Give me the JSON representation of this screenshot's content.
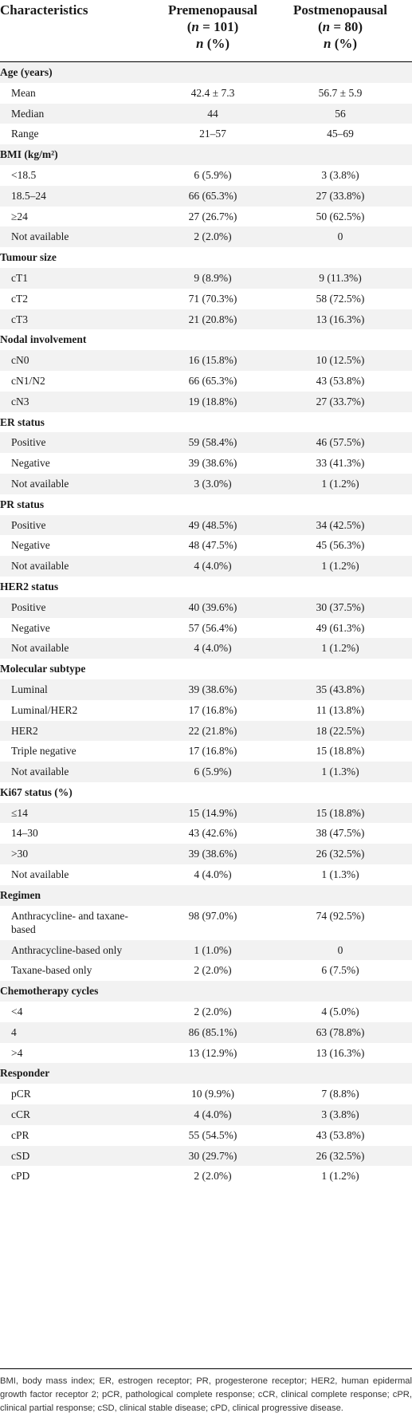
{
  "header": {
    "characteristics": "Characteristics",
    "pre_title": "Premenopausal",
    "pre_n_open": "(",
    "pre_n_var": "n",
    "pre_n_val": " = 101)",
    "pre_sub_n": "n",
    "pre_sub_pct": " (%)",
    "post_title": "Postmenopausal",
    "post_n_open": "(",
    "post_n_var": "n",
    "post_n_val": " = 80)",
    "post_sub_n": "n",
    "post_sub_pct": " (%)"
  },
  "rows": [
    {
      "label": "Age (years)",
      "pre": "",
      "post": "",
      "category": true
    },
    {
      "label": "Mean",
      "pre": "42.4 ± 7.3",
      "post": "56.7 ± 5.9"
    },
    {
      "label": "Median",
      "pre": "44",
      "post": "56"
    },
    {
      "label": "Range",
      "pre": "21–57",
      "post": "45–69"
    },
    {
      "label": "BMI (kg/m²)",
      "pre": "",
      "post": "",
      "category": true
    },
    {
      "label": "<18.5",
      "pre": "6 (5.9%)",
      "post": "3 (3.8%)"
    },
    {
      "label": "18.5–24",
      "pre": "66 (65.3%)",
      "post": "27 (33.8%)"
    },
    {
      "label": "≥24",
      "pre": "27 (26.7%)",
      "post": "50 (62.5%)"
    },
    {
      "label": "Not available",
      "pre": "2 (2.0%)",
      "post": "0"
    },
    {
      "label": "Tumour size",
      "pre": "",
      "post": "",
      "category": true
    },
    {
      "label": "cT1",
      "pre": "9 (8.9%)",
      "post": "9 (11.3%)"
    },
    {
      "label": "cT2",
      "pre": "71 (70.3%)",
      "post": "58 (72.5%)"
    },
    {
      "label": "cT3",
      "pre": "21 (20.8%)",
      "post": "13 (16.3%)"
    },
    {
      "label": "Nodal involvement",
      "pre": "",
      "post": "",
      "category": true
    },
    {
      "label": "cN0",
      "pre": "16 (15.8%)",
      "post": "10 (12.5%)"
    },
    {
      "label": "cN1/N2",
      "pre": "66 (65.3%)",
      "post": "43 (53.8%)"
    },
    {
      "label": "cN3",
      "pre": "19 (18.8%)",
      "post": "27 (33.7%)"
    },
    {
      "label": "ER status",
      "pre": "",
      "post": "",
      "category": true
    },
    {
      "label": "Positive",
      "pre": "59 (58.4%)",
      "post": "46 (57.5%)"
    },
    {
      "label": "Negative",
      "pre": "39 (38.6%)",
      "post": "33 (41.3%)"
    },
    {
      "label": "Not available",
      "pre": "3 (3.0%)",
      "post": "1 (1.2%)"
    },
    {
      "label": "PR status",
      "pre": "",
      "post": "",
      "category": true
    },
    {
      "label": "Positive",
      "pre": "49 (48.5%)",
      "post": "34 (42.5%)"
    },
    {
      "label": "Negative",
      "pre": "48 (47.5%)",
      "post": "45 (56.3%)"
    },
    {
      "label": "Not available",
      "pre": "4 (4.0%)",
      "post": "1 (1.2%)"
    },
    {
      "label": "HER2 status",
      "pre": "",
      "post": "",
      "category": true
    },
    {
      "label": "Positive",
      "pre": "40 (39.6%)",
      "post": "30 (37.5%)"
    },
    {
      "label": "Negative",
      "pre": "57 (56.4%)",
      "post": "49 (61.3%)"
    },
    {
      "label": "Not available",
      "pre": "4 (4.0%)",
      "post": "1 (1.2%)"
    },
    {
      "label": "Molecular subtype",
      "pre": "",
      "post": "",
      "category": true
    },
    {
      "label": "Luminal",
      "pre": "39 (38.6%)",
      "post": "35 (43.8%)"
    },
    {
      "label": "Luminal/HER2",
      "pre": "17 (16.8%)",
      "post": "11 (13.8%)"
    },
    {
      "label": "HER2",
      "pre": "22 (21.8%)",
      "post": "18 (22.5%)"
    },
    {
      "label": "Triple negative",
      "pre": "17 (16.8%)",
      "post": "15 (18.8%)"
    },
    {
      "label": "Not available",
      "pre": "6 (5.9%)",
      "post": "1 (1.3%)"
    },
    {
      "label": "Ki67 status (%)",
      "pre": "",
      "post": "",
      "category": true
    },
    {
      "label": "≤14",
      "pre": "15 (14.9%)",
      "post": "15 (18.8%)"
    },
    {
      "label": "14–30",
      "pre": "43 (42.6%)",
      "post": "38 (47.5%)"
    },
    {
      "label": ">30",
      "pre": "39 (38.6%)",
      "post": "26 (32.5%)"
    },
    {
      "label": "Not available",
      "pre": "4 (4.0%)",
      "post": "1 (1.3%)"
    },
    {
      "label": "Regimen",
      "pre": "",
      "post": "",
      "category": true
    },
    {
      "label": "Anthracycline- and taxane-based",
      "pre": "98 (97.0%)",
      "post": "74 (92.5%)",
      "tall": true
    },
    {
      "label": "Anthracycline-based only",
      "pre": "1 (1.0%)",
      "post": "0"
    },
    {
      "label": "Taxane-based only",
      "pre": "2 (2.0%)",
      "post": "6 (7.5%)"
    },
    {
      "label": "Chemotherapy cycles",
      "pre": "",
      "post": "",
      "category": true
    },
    {
      "label": "<4",
      "pre": "2 (2.0%)",
      "post": "4 (5.0%)"
    },
    {
      "label": "4",
      "pre": "86 (85.1%)",
      "post": "63 (78.8%)"
    },
    {
      "label": ">4",
      "pre": "13 (12.9%)",
      "post": "13 (16.3%)"
    },
    {
      "label": "Responder",
      "pre": "",
      "post": "",
      "category": true
    },
    {
      "label": "pCR",
      "pre": "10 (9.9%)",
      "post": "7 (8.8%)"
    },
    {
      "label": "cCR",
      "pre": "4 (4.0%)",
      "post": "3 (3.8%)"
    },
    {
      "label": "cPR",
      "pre": "55 (54.5%)",
      "post": "43 (53.8%)"
    },
    {
      "label": "cSD",
      "pre": "30 (29.7%)",
      "post": "26 (32.5%)"
    },
    {
      "label": "cPD",
      "pre": "2 (2.0%)",
      "post": "1 (1.2%)"
    }
  ],
  "footnote": "BMI, body mass index; ER, estrogen receptor; PR, progesterone receptor; HER2, human epidermal growth factor receptor 2; pCR, pathological complete response; cCR, clinical complete response; cPR, clinical partial response; cSD, clinical stable disease; cPD, clinical progressive disease."
}
